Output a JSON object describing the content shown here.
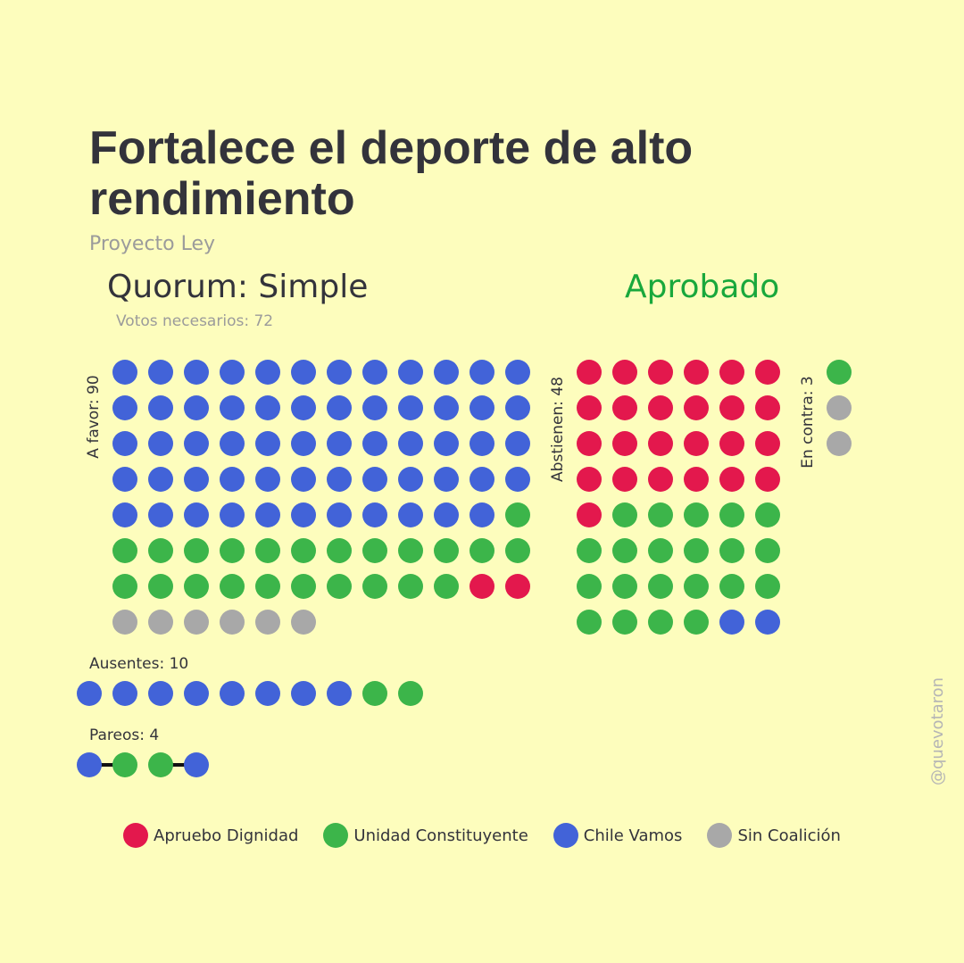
{
  "header": {
    "title": "Fortalece el deporte de alto rendimiento",
    "subtitle": "Proyecto Ley",
    "quorum": "Quorum: Simple",
    "votes_needed": "Votos necesarios: 72",
    "result": "Aprobado"
  },
  "colors": {
    "background": "#fdfdbd",
    "Apruebo Dignidad": "#e3184d",
    "Unidad Constituyente": "#3cb54a",
    "Chile Vamos": "#4263d8",
    "Sin Coalición": "#a8a8a8",
    "result": "#19a83c"
  },
  "chart_data": {
    "type": "waffle",
    "groups": [
      {
        "label": "A favor: 90",
        "counts": {
          "Chile Vamos": 59,
          "Unidad Constituyente": 23,
          "Apruebo Dignidad": 2,
          "Sin Coalición": 6
        }
      },
      {
        "label": "Abstienen: 48",
        "counts": {
          "Apruebo Dignidad": 25,
          "Unidad Constituyente": 21,
          "Chile Vamos": 2
        }
      },
      {
        "label": "En contra: 3",
        "counts": {
          "Unidad Constituyente": 1,
          "Sin Coalición": 2
        }
      },
      {
        "label": "Ausentes: 10",
        "counts": {
          "Chile Vamos": 8,
          "Unidad Constituyente": 2
        }
      },
      {
        "label": "Pareos: 4",
        "pairs": [
          [
            "Chile Vamos",
            "Unidad Constituyente"
          ],
          [
            "Unidad Constituyente",
            "Chile Vamos"
          ]
        ]
      }
    ],
    "legend": [
      "Apruebo Dignidad",
      "Unidad Constituyente",
      "Chile Vamos",
      "Sin Coalición"
    ]
  },
  "credit": "@quevotaron"
}
